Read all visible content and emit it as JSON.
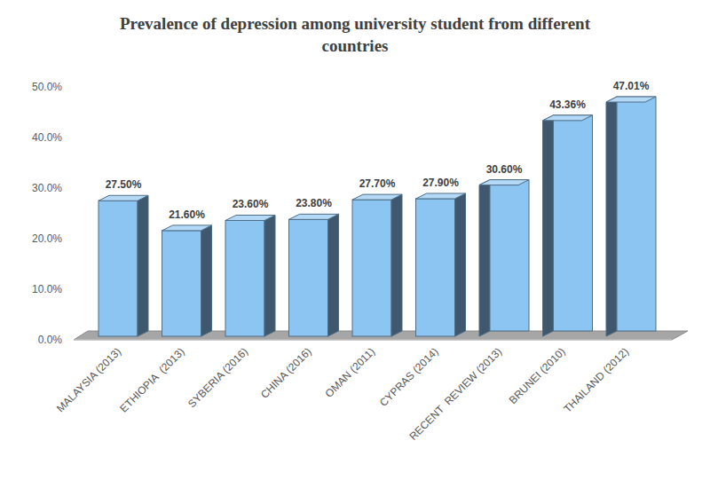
{
  "chart_data": {
    "type": "bar",
    "title": "Prevalence of depression among university student from different countries",
    "categories": [
      "MALAYSIA (2013)",
      "ETHIOPIA  (2013)",
      "SYBERIA (2016)",
      "CHINA (2016)",
      "OMAN (2011)",
      "CYPRAS (2014)",
      "RECENT  REVIEW (2013)",
      "BRUNEI (2010)",
      "THAILAND (2012)"
    ],
    "values": [
      27.5,
      21.6,
      23.6,
      23.8,
      27.7,
      27.9,
      30.6,
      43.36,
      47.01
    ],
    "value_labels": [
      "27.50%",
      "21.60%",
      "23.60%",
      "23.80%",
      "27.70%",
      "27.90%",
      "30.60%",
      "43.36%",
      "47.01%"
    ],
    "color": "#8cc4f2",
    "ylim": [
      0,
      50
    ],
    "yticks": [
      {
        "value": 0,
        "label": "0.0%"
      },
      {
        "value": 10,
        "label": "10.0%"
      },
      {
        "value": 20,
        "label": "20.0%"
      },
      {
        "value": 30,
        "label": "30.0%"
      },
      {
        "value": 40,
        "label": "40.0%"
      },
      {
        "value": 50,
        "label": "50.0%"
      }
    ],
    "grid": false,
    "data_labels": true
  }
}
